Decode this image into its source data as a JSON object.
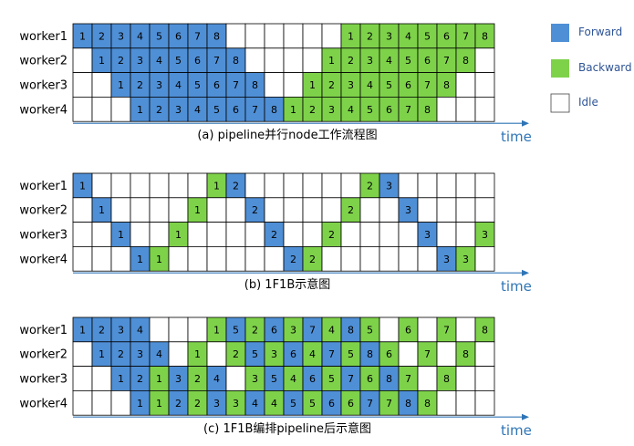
{
  "colors": {
    "forward": "#4f8fd6",
    "backward": "#7ed24a",
    "idle": "#ffffff",
    "grid": "#000000",
    "axis": "#2e75b6"
  },
  "legend": [
    {
      "key": "F",
      "label": "Forward"
    },
    {
      "key": "B",
      "label": "Backward"
    },
    {
      "key": "I",
      "label": "Idle"
    }
  ],
  "time_label": "time",
  "panels": [
    {
      "caption": "(a) pipeline并行node工作流程图",
      "rows": [
        {
          "label": "worker1",
          "cells": [
            "F1",
            "F2",
            "F3",
            "F4",
            "F5",
            "F6",
            "F7",
            "F8",
            "",
            "",
            "",
            "",
            "",
            "",
            "B1",
            "B2",
            "B3",
            "B4",
            "B5",
            "B6",
            "B7",
            "B8"
          ]
        },
        {
          "label": "worker2",
          "cells": [
            "",
            "F1",
            "F2",
            "F3",
            "F4",
            "F5",
            "F6",
            "F7",
            "F8",
            "",
            "",
            "",
            "",
            "B1",
            "B2",
            "B3",
            "B4",
            "B5",
            "B6",
            "B7",
            "B8",
            ""
          ]
        },
        {
          "label": "worker3",
          "cells": [
            "",
            "",
            "F1",
            "F2",
            "F3",
            "F4",
            "F5",
            "F6",
            "F7",
            "F8",
            "",
            "",
            "B1",
            "B2",
            "B3",
            "B4",
            "B5",
            "B6",
            "B7",
            "B8",
            "",
            ""
          ]
        },
        {
          "label": "worker4",
          "cells": [
            "",
            "",
            "",
            "F1",
            "F2",
            "F3",
            "F4",
            "F5",
            "F6",
            "F7",
            "F8",
            "B1",
            "B2",
            "B3",
            "B4",
            "B5",
            "B6",
            "B7",
            "B8",
            "",
            "",
            ""
          ]
        }
      ]
    },
    {
      "caption": "(b) 1F1B示意图",
      "rows": [
        {
          "label": "worker1",
          "cells": [
            "F1",
            "",
            "",
            "",
            "",
            "",
            "",
            "B1",
            "F2",
            "",
            "",
            "",
            "",
            "",
            "",
            "B2",
            "F3",
            "",
            "",
            "",
            "",
            ""
          ]
        },
        {
          "label": "worker2",
          "cells": [
            "",
            "F1",
            "",
            "",
            "",
            "",
            "B1",
            "",
            "",
            "F2",
            "",
            "",
            "",
            "",
            "B2",
            "",
            "",
            "F3",
            "",
            "",
            "",
            ""
          ]
        },
        {
          "label": "worker3",
          "cells": [
            "",
            "",
            "F1",
            "",
            "",
            "B1",
            "",
            "",
            "",
            "",
            "F2",
            "",
            "",
            "B2",
            "",
            "",
            "",
            "",
            "F3",
            "",
            "",
            "B3"
          ]
        },
        {
          "label": "worker4",
          "cells": [
            "",
            "",
            "",
            "F1",
            "B1",
            "",
            "",
            "",
            "",
            "",
            "",
            "F2",
            "B2",
            "",
            "",
            "",
            "",
            "",
            "",
            "F3",
            "B3",
            ""
          ]
        }
      ]
    },
    {
      "caption": "(c) 1F1B编排pipeline后示意图",
      "rows": [
        {
          "label": "worker1",
          "cells": [
            "F1",
            "F2",
            "F3",
            "F4",
            "",
            "",
            "",
            "B1",
            "F5",
            "B2",
            "F6",
            "B3",
            "F7",
            "B4",
            "F8",
            "B5",
            "",
            "B6",
            "",
            "B7",
            "",
            "B8"
          ]
        },
        {
          "label": "worker2",
          "cells": [
            "",
            "F1",
            "F2",
            "F3",
            "F4",
            "",
            "B1",
            "",
            "B2",
            "F5",
            "B3",
            "F6",
            "B4",
            "F7",
            "B5",
            "F8",
            "B6",
            "",
            "B7",
            "",
            "B8",
            ""
          ]
        },
        {
          "label": "worker3",
          "cells": [
            "",
            "",
            "F1",
            "F2",
            "B1",
            "F3",
            "B2",
            "F4",
            "",
            "B3",
            "F5",
            "B4",
            "F6",
            "B5",
            "F7",
            "B6",
            "F8",
            "B7",
            "",
            "B8",
            "",
            ""
          ]
        },
        {
          "label": "worker4",
          "cells": [
            "",
            "",
            "",
            "F1",
            "B1",
            "F2",
            "B2",
            "F3",
            "B3",
            "F4",
            "B4",
            "F5",
            "B5",
            "F6",
            "B6",
            "F7",
            "B7",
            "F8",
            "B8",
            "",
            "",
            ""
          ]
        }
      ]
    }
  ]
}
